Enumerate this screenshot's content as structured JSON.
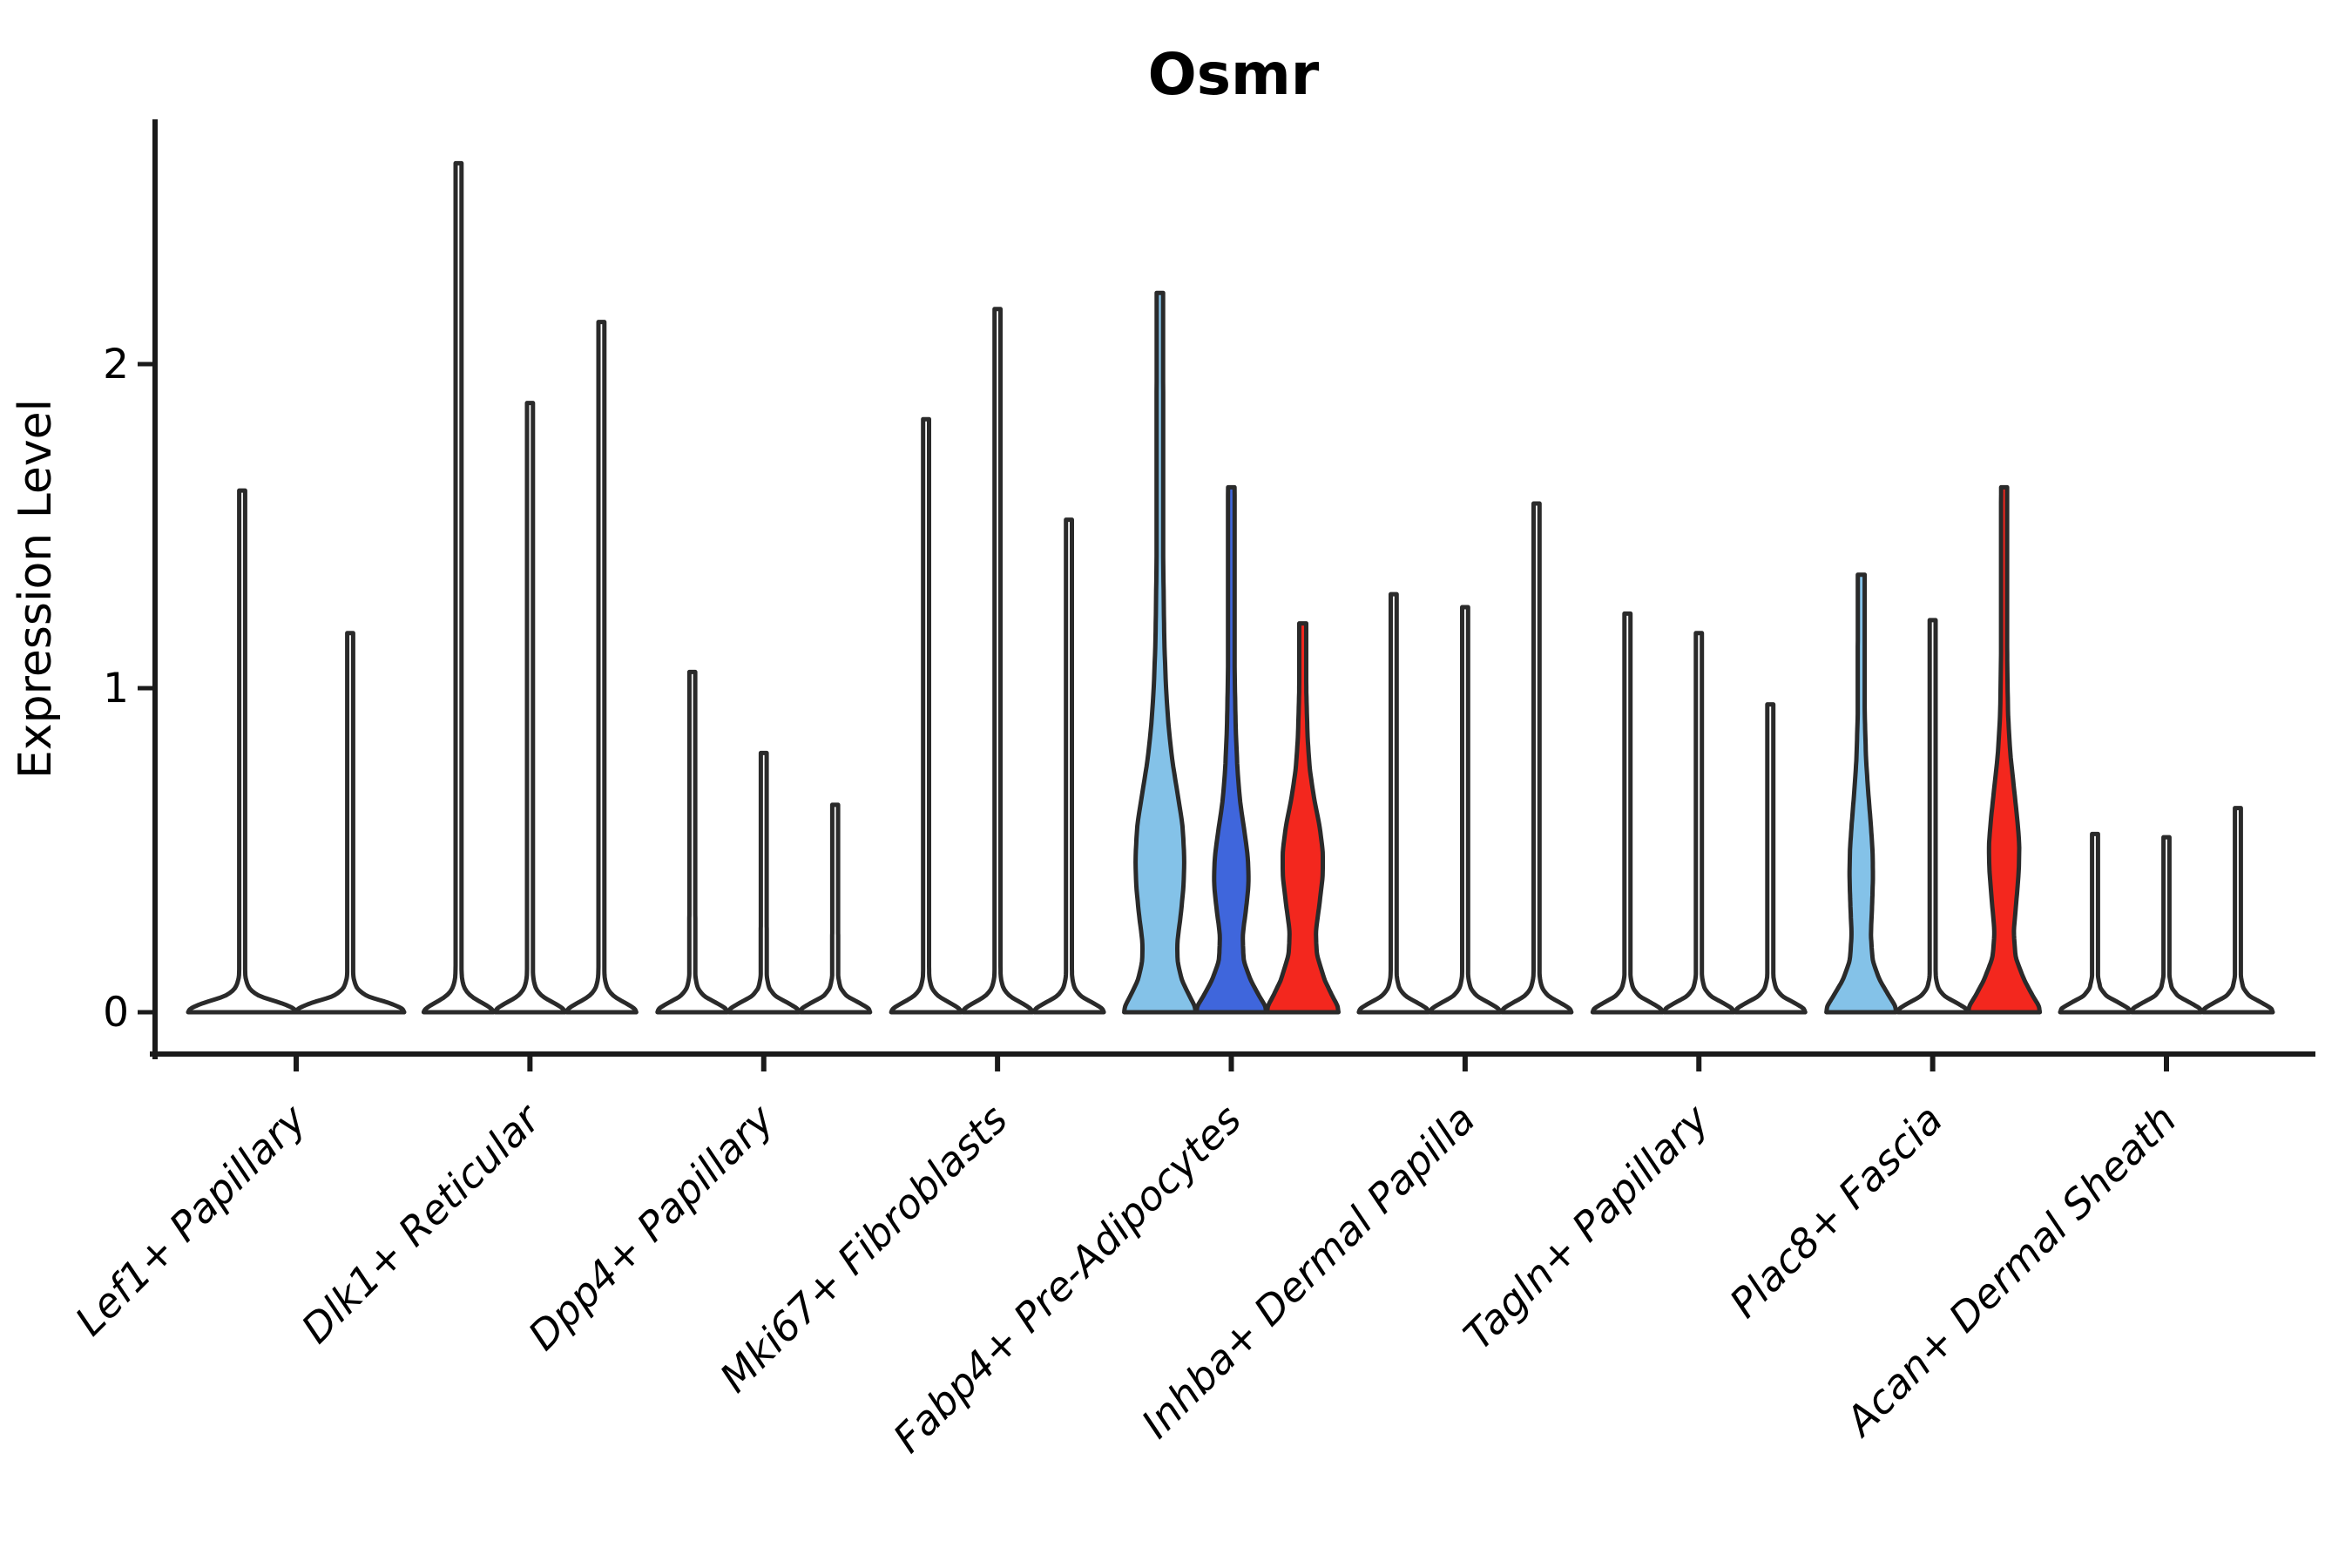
{
  "title": "Osmr",
  "y_axis": {
    "label": "Expression Level",
    "tick_labels": [
      "0",
      "1",
      "2"
    ]
  },
  "x_axis": {
    "categories": [
      "Lef1+ Papillary",
      "Dlk1+ Reticular",
      "Dpp4+ Papillary",
      "Mki67+ Fibroblasts",
      "Fabp4+ Pre-Adipocytes",
      "Inhba+ Dermal Papilla",
      "Tagln+ Papillary",
      "Plac8+ Fascia",
      "Acan+ Dermal Sheath"
    ],
    "label_rotation_deg": 45,
    "label_style": "italic"
  },
  "colors": {
    "sky_blue": "#84C2E8",
    "royal_blue": "#3F66DC",
    "red": "#F3271E",
    "outline": "#2A2A2A",
    "axis": "#1A1A1A",
    "background": "#FFFFFF"
  },
  "chart_data": {
    "type": "violin",
    "title": "Osmr",
    "xlabel": "",
    "ylabel": "Expression Level",
    "ylim": [
      0,
      2.75
    ],
    "yticks": [
      0,
      1,
      2
    ],
    "grid": false,
    "legend_position": "none",
    "categories": [
      "Lef1+ Papillary",
      "Dlk1+ Reticular",
      "Dpp4+ Papillary",
      "Mki67+ Fibroblasts",
      "Fabp4+ Pre-Adipocytes",
      "Inhba+ Dermal Papilla",
      "Tagln+ Papillary",
      "Plac8+ Fascia",
      "Acan+ Dermal Sheath"
    ],
    "groups": [
      {
        "category": "Lef1+ Papillary",
        "violins": [
          {
            "max": 1.61,
            "fill": null,
            "profile": "thin_half"
          },
          {
            "max": 1.17,
            "fill": null,
            "profile": "thin_half"
          }
        ]
      },
      {
        "category": "Dlk1+ Reticular",
        "violins": [
          {
            "max": 2.62,
            "fill": null,
            "profile": "thin_third"
          },
          {
            "max": 1.88,
            "fill": null,
            "profile": "thin_third"
          },
          {
            "max": 2.13,
            "fill": null,
            "profile": "thin_third"
          }
        ]
      },
      {
        "category": "Dpp4+ Papillary",
        "violins": [
          {
            "max": 1.05,
            "fill": null,
            "profile": "thin_third"
          },
          {
            "max": 0.8,
            "fill": null,
            "profile": "thin_third"
          },
          {
            "max": 0.64,
            "fill": null,
            "profile": "thin_third"
          }
        ]
      },
      {
        "category": "Mki67+ Fibroblasts",
        "violins": [
          {
            "max": 1.83,
            "fill": null,
            "profile": "thin_third"
          },
          {
            "max": 2.17,
            "fill": null,
            "profile": "thin_third"
          },
          {
            "max": 1.52,
            "fill": null,
            "profile": "thin_third"
          }
        ]
      },
      {
        "category": "Fabp4+ Pre-Adipocytes",
        "violins": [
          {
            "max": 2.22,
            "fill": "#84C2E8",
            "profile": "fabp4_sky"
          },
          {
            "max": 1.62,
            "fill": "#3F66DC",
            "profile": "fabp4_royal"
          },
          {
            "max": 1.2,
            "fill": "#F3271E",
            "profile": "fabp4_red"
          }
        ]
      },
      {
        "category": "Inhba+ Dermal Papilla",
        "violins": [
          {
            "max": 1.29,
            "fill": null,
            "profile": "thin_third"
          },
          {
            "max": 1.25,
            "fill": null,
            "profile": "thin_third"
          },
          {
            "max": 1.57,
            "fill": null,
            "profile": "thin_third"
          }
        ]
      },
      {
        "category": "Tagln+ Papillary",
        "violins": [
          {
            "max": 1.23,
            "fill": null,
            "profile": "thin_third"
          },
          {
            "max": 1.17,
            "fill": null,
            "profile": "thin_third"
          },
          {
            "max": 0.95,
            "fill": null,
            "profile": "thin_third"
          }
        ]
      },
      {
        "category": "Plac8+ Fascia",
        "violins": [
          {
            "max": 1.35,
            "fill": "#84C2E8",
            "profile": "plac8_sky"
          },
          {
            "max": 1.21,
            "fill": null,
            "profile": "thin_third"
          },
          {
            "max": 1.62,
            "fill": "#F3271E",
            "profile": "plac8_red"
          }
        ]
      },
      {
        "category": "Acan+ Dermal Sheath",
        "violins": [
          {
            "max": 0.55,
            "fill": null,
            "profile": "thin_third"
          },
          {
            "max": 0.54,
            "fill": null,
            "profile": "thin_third"
          },
          {
            "max": 0.63,
            "fill": null,
            "profile": "thin_third"
          }
        ]
      }
    ],
    "profiles": {
      "thin_third": [
        [
          0,
          40
        ],
        [
          0.012,
          38.5
        ],
        [
          0.03,
          27
        ],
        [
          0.05,
          13
        ],
        [
          0.075,
          6
        ],
        [
          0.11,
          3.4
        ],
        [
          9,
          3.4
        ]
      ],
      "thin_half": [
        [
          0,
          62
        ],
        [
          0.012,
          60
        ],
        [
          0.03,
          44
        ],
        [
          0.05,
          18
        ],
        [
          0.075,
          7
        ],
        [
          0.11,
          3.4
        ],
        [
          9,
          3.4
        ]
      ],
      "fabp4_sky": [
        [
          0,
          41
        ],
        [
          0.02,
          40
        ],
        [
          0.05,
          34
        ],
        [
          0.1,
          25
        ],
        [
          0.16,
          20
        ],
        [
          0.22,
          20
        ],
        [
          0.3,
          24
        ],
        [
          0.4,
          27.5
        ],
        [
          0.48,
          28
        ],
        [
          0.58,
          26
        ],
        [
          0.68,
          20
        ],
        [
          0.78,
          14
        ],
        [
          0.88,
          10
        ],
        [
          1.0,
          7
        ],
        [
          1.15,
          5
        ],
        [
          1.4,
          3.8
        ],
        [
          9,
          3.1
        ]
      ],
      "fabp4_royal": [
        [
          0,
          40
        ],
        [
          0.02,
          39
        ],
        [
          0.05,
          32
        ],
        [
          0.1,
          22
        ],
        [
          0.16,
          14
        ],
        [
          0.24,
          13
        ],
        [
          0.32,
          17
        ],
        [
          0.4,
          20
        ],
        [
          0.48,
          19
        ],
        [
          0.56,
          15
        ],
        [
          0.65,
          10
        ],
        [
          0.75,
          7
        ],
        [
          0.88,
          5
        ],
        [
          1.05,
          3.8
        ],
        [
          9,
          3.1
        ]
      ],
      "fabp4_red": [
        [
          0,
          41
        ],
        [
          0.02,
          40
        ],
        [
          0.05,
          34
        ],
        [
          0.1,
          25
        ],
        [
          0.18,
          16
        ],
        [
          0.25,
          15
        ],
        [
          0.33,
          19
        ],
        [
          0.42,
          23
        ],
        [
          0.5,
          23
        ],
        [
          0.58,
          19
        ],
        [
          0.66,
          13
        ],
        [
          0.75,
          8
        ],
        [
          0.85,
          5.5
        ],
        [
          1.0,
          4
        ],
        [
          9,
          3.1
        ]
      ],
      "plac8_sky": [
        [
          0,
          40
        ],
        [
          0.02,
          39
        ],
        [
          0.05,
          32
        ],
        [
          0.1,
          21
        ],
        [
          0.16,
          13
        ],
        [
          0.24,
          11
        ],
        [
          0.33,
          12.5
        ],
        [
          0.42,
          13.5
        ],
        [
          0.5,
          13
        ],
        [
          0.58,
          11
        ],
        [
          0.68,
          8
        ],
        [
          0.78,
          5.5
        ],
        [
          0.92,
          4
        ],
        [
          9,
          3.1
        ]
      ],
      "plac8_red": [
        [
          0,
          41
        ],
        [
          0.02,
          40
        ],
        [
          0.05,
          33
        ],
        [
          0.1,
          23
        ],
        [
          0.17,
          13
        ],
        [
          0.25,
          11
        ],
        [
          0.34,
          14
        ],
        [
          0.44,
          17
        ],
        [
          0.52,
          17.5
        ],
        [
          0.6,
          15
        ],
        [
          0.7,
          11
        ],
        [
          0.8,
          7
        ],
        [
          0.92,
          4.5
        ],
        [
          1.1,
          3.5
        ],
        [
          9,
          3.1
        ]
      ]
    }
  }
}
